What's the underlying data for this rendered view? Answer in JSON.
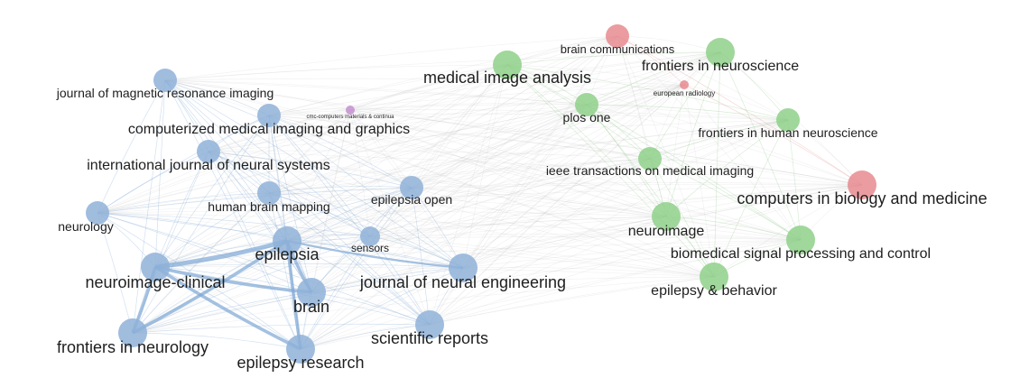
{
  "colors": {
    "cluster_blue": "#8fb1d8",
    "cluster_green": "#8fd08a",
    "cluster_red": "#e78b8f",
    "cluster_purple": "#c48fd0",
    "edge_gray": "#bdbdbd",
    "edge_blue": "#7ea7d4",
    "edge_green": "#8fc98a",
    "edge_red": "#e09090"
  },
  "nodes": [
    {
      "id": "jmri",
      "label": "journal of magnetic resonance imaging",
      "cluster": "blue",
      "weight": 2
    },
    {
      "id": "cmig",
      "label": "computerized medical imaging and graphics",
      "cluster": "blue",
      "weight": 2
    },
    {
      "id": "ijns",
      "label": "international journal of neural systems",
      "cluster": "blue",
      "weight": 2
    },
    {
      "id": "hbm",
      "label": "human brain mapping",
      "cluster": "blue",
      "weight": 2
    },
    {
      "id": "neurology",
      "label": "neurology",
      "cluster": "blue",
      "weight": 2
    },
    {
      "id": "epilepsia",
      "label": "epilepsia",
      "cluster": "blue",
      "weight": 3
    },
    {
      "id": "nicl",
      "label": "neuroimage-clinical",
      "cluster": "blue",
      "weight": 3
    },
    {
      "id": "sensors",
      "label": "sensors",
      "cluster": "blue",
      "weight": 1
    },
    {
      "id": "epilepsiaopen",
      "label": "epilepsia open",
      "cluster": "blue",
      "weight": 2
    },
    {
      "id": "jne",
      "label": "journal of neural engineering",
      "cluster": "blue",
      "weight": 3
    },
    {
      "id": "brain",
      "label": "brain",
      "cluster": "blue",
      "weight": 3
    },
    {
      "id": "finneurology",
      "label": "frontiers in neurology",
      "cluster": "blue",
      "weight": 3
    },
    {
      "id": "epres",
      "label": "epilepsy research",
      "cluster": "blue",
      "weight": 3
    },
    {
      "id": "scirep",
      "label": "scientific reports",
      "cluster": "blue",
      "weight": 3
    },
    {
      "id": "cmc",
      "label": "cmc-computers materials & continua",
      "cluster": "purple",
      "weight": 0
    },
    {
      "id": "mia",
      "label": "medical image analysis",
      "cluster": "green",
      "weight": 3
    },
    {
      "id": "plosone",
      "label": "plos one",
      "cluster": "green",
      "weight": 2
    },
    {
      "id": "finneuroscience",
      "label": "frontiers in neuroscience",
      "cluster": "green",
      "weight": 3
    },
    {
      "id": "fhn",
      "label": "frontiers in human neuroscience",
      "cluster": "green",
      "weight": 2
    },
    {
      "id": "tmi",
      "label": "ieee transactions on medical imaging",
      "cluster": "green",
      "weight": 2
    },
    {
      "id": "neuroimage",
      "label": "neuroimage",
      "cluster": "green",
      "weight": 3
    },
    {
      "id": "bspc",
      "label": "biomedical signal processing and control",
      "cluster": "green",
      "weight": 3
    },
    {
      "id": "epbeh",
      "label": "epilepsy & behavior",
      "cluster": "green",
      "weight": 3
    },
    {
      "id": "braincomm",
      "label": "brain communications",
      "cluster": "red",
      "weight": 2
    },
    {
      "id": "eurorad",
      "label": "european radiology",
      "cluster": "red",
      "weight": 0
    },
    {
      "id": "cbm",
      "label": "computers in biology and medicine",
      "cluster": "red",
      "weight": 3
    }
  ],
  "strong_links": [
    [
      "nicl",
      "epilepsia",
      3
    ],
    [
      "nicl",
      "brain",
      2
    ],
    [
      "nicl",
      "epres",
      2
    ],
    [
      "epilepsia",
      "brain",
      2
    ],
    [
      "epilepsia",
      "finneurology",
      2
    ],
    [
      "epilepsia",
      "epres",
      2
    ],
    [
      "nicl",
      "finneurology",
      2
    ],
    [
      "epilepsia",
      "jne",
      1
    ]
  ]
}
